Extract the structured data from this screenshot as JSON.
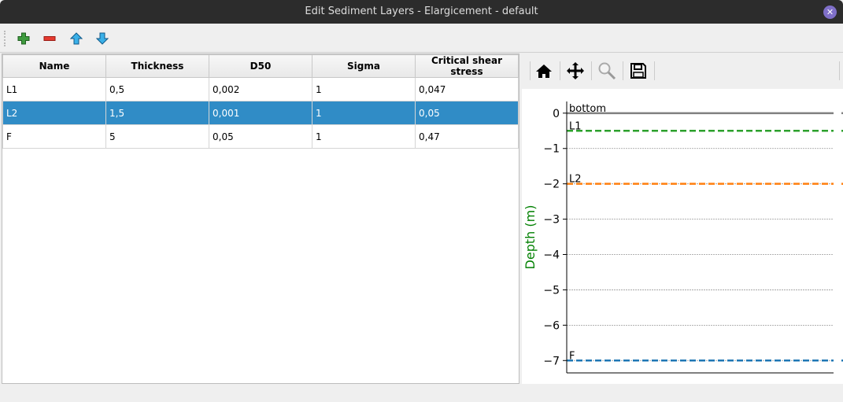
{
  "window": {
    "title": "Edit Sediment Layers - Elargicement - default",
    "close_icon": "close-icon"
  },
  "toolbar": {
    "icons": [
      "add-icon",
      "remove-icon",
      "move-up-icon",
      "move-down-icon"
    ]
  },
  "table": {
    "columns": [
      "Name",
      "Thickness",
      "D50",
      "Sigma",
      "Critical shear stress"
    ],
    "rows": [
      [
        "L1",
        "0,5",
        "0,002",
        "1",
        "0,047"
      ],
      [
        "L2",
        "1,5",
        "0,001",
        "1",
        "0,05"
      ],
      [
        "F",
        "5",
        "0,05",
        "1",
        "0,47"
      ]
    ],
    "selected_row": 1
  },
  "plot_toolbar": {
    "icons": [
      "home-icon",
      "pan-icon",
      "zoom-icon",
      "save-icon"
    ]
  },
  "chart_data": {
    "type": "line",
    "ylabel": "Depth (m)",
    "ylim": [
      -7.35,
      0.33
    ],
    "yticks": [
      0,
      -1,
      -2,
      -3,
      -4,
      -5,
      -6,
      -7
    ],
    "ytick_labels": [
      "0",
      "−1",
      "−2",
      "−3",
      "−4",
      "−5",
      "−6",
      "−7"
    ],
    "grid": true,
    "lines": [
      {
        "label": "bottom",
        "y": 0,
        "style": "solid",
        "color": "#808080"
      },
      {
        "label": "L1",
        "y": -0.5,
        "style": "dashed",
        "color": "#2ca02c"
      },
      {
        "label": "L2",
        "y": -2,
        "style": "dashed",
        "color": "#ff7f0e"
      },
      {
        "label": "F",
        "y": -7,
        "style": "dashed",
        "color": "#1f77b4"
      }
    ],
    "ylabel_color": "#008000"
  }
}
